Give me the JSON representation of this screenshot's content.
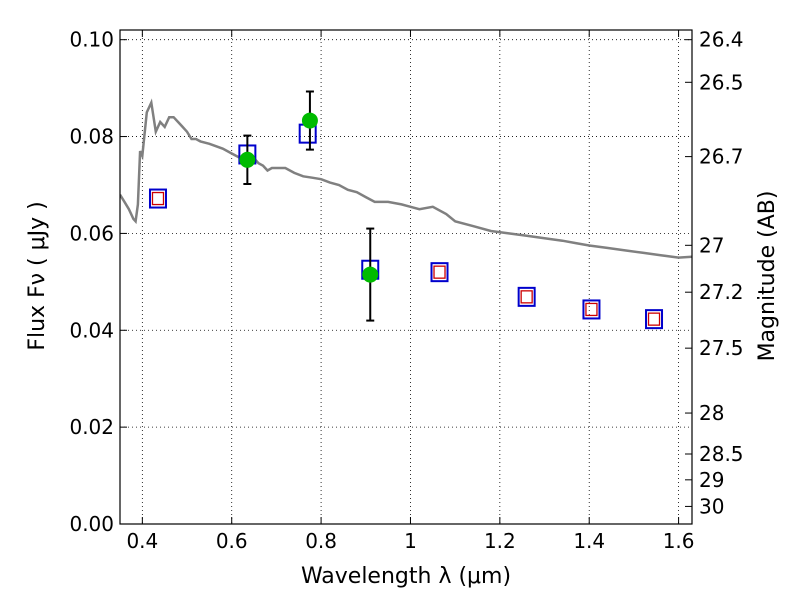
{
  "chart_data": {
    "type": "scatter",
    "xlabel": "Wavelength  λ (μm)",
    "ylabel": "Flux  Fν  ( μJy )",
    "ylabel_right": "Magnitude (AB)",
    "xlim": [
      0.35,
      1.63
    ],
    "ylim": [
      0.0,
      0.102
    ],
    "grid": true,
    "grid_style": "dotted",
    "x_ticks": [
      0.4,
      0.6,
      0.8,
      1.0,
      1.2,
      1.4,
      1.6
    ],
    "x_tick_labels": [
      "0.4",
      "0.6",
      "0.8",
      "1",
      "1.2",
      "1.4",
      "1.6"
    ],
    "y_ticks": [
      0.0,
      0.02,
      0.04,
      0.06,
      0.08,
      0.1
    ],
    "y_tick_labels": [
      "0.00",
      "0.02",
      "0.04",
      "0.06",
      "0.08",
      "0.10"
    ],
    "right_ticks": [
      26.4,
      26.5,
      26.7,
      27,
      27.2,
      27.5,
      28,
      28.5,
      29,
      30
    ],
    "right_tick_labels": [
      "26.4",
      "26.5",
      "26.7",
      "27",
      "27.2",
      "27.5",
      "28",
      "28.5",
      "29",
      "30"
    ],
    "series": [
      {
        "kind": "line",
        "color": "#808080",
        "x": [
          0.35,
          0.36,
          0.37,
          0.38,
          0.385,
          0.39,
          0.395,
          0.4,
          0.41,
          0.42,
          0.43,
          0.44,
          0.45,
          0.46,
          0.47,
          0.48,
          0.49,
          0.5,
          0.51,
          0.52,
          0.53,
          0.55,
          0.58,
          0.6,
          0.61,
          0.62,
          0.63,
          0.65,
          0.66,
          0.67,
          0.68,
          0.69,
          0.7,
          0.72,
          0.74,
          0.76,
          0.78,
          0.8,
          0.82,
          0.84,
          0.86,
          0.88,
          0.9,
          0.92,
          0.95,
          0.98,
          1.0,
          1.02,
          1.05,
          1.08,
          1.1,
          1.14,
          1.18,
          1.22,
          1.26,
          1.3,
          1.34,
          1.37,
          1.4,
          1.44,
          1.48,
          1.52,
          1.56,
          1.6,
          1.63
        ],
        "y": [
          0.068,
          0.0665,
          0.065,
          0.063,
          0.0625,
          0.066,
          0.077,
          0.076,
          0.085,
          0.087,
          0.081,
          0.083,
          0.082,
          0.084,
          0.084,
          0.083,
          0.082,
          0.081,
          0.0795,
          0.0795,
          0.079,
          0.0785,
          0.0775,
          0.0765,
          0.076,
          0.0755,
          0.0745,
          0.0755,
          0.0745,
          0.074,
          0.073,
          0.0735,
          0.0735,
          0.0735,
          0.0725,
          0.0718,
          0.0715,
          0.0712,
          0.0705,
          0.07,
          0.069,
          0.0685,
          0.0675,
          0.0665,
          0.0665,
          0.066,
          0.0655,
          0.065,
          0.0655,
          0.064,
          0.0625,
          0.0615,
          0.0605,
          0.06,
          0.0595,
          0.059,
          0.0585,
          0.058,
          0.0575,
          0.057,
          0.0565,
          0.056,
          0.0555,
          0.055,
          0.0552
        ]
      },
      {
        "kind": "open-square",
        "color": "#0000cc",
        "x": [
          0.435,
          0.635,
          0.77,
          0.91,
          1.065,
          1.26,
          1.405,
          1.545
        ],
        "y": [
          0.0672,
          0.0763,
          0.0806,
          0.0525,
          0.052,
          0.0469,
          0.0443,
          0.0423
        ]
      },
      {
        "kind": "small-open-square",
        "color": "#cc0000",
        "x": [
          0.435,
          1.065,
          1.26,
          1.405,
          1.545
        ],
        "y": [
          0.0672,
          0.052,
          0.0469,
          0.0443,
          0.0423
        ]
      },
      {
        "kind": "filled-circle-errorbar",
        "color": "#00bb00",
        "x": [
          0.635,
          0.775,
          0.91
        ],
        "y": [
          0.0752,
          0.0833,
          0.0515
        ],
        "yerr": [
          0.005,
          0.006,
          0.0095
        ]
      }
    ]
  }
}
